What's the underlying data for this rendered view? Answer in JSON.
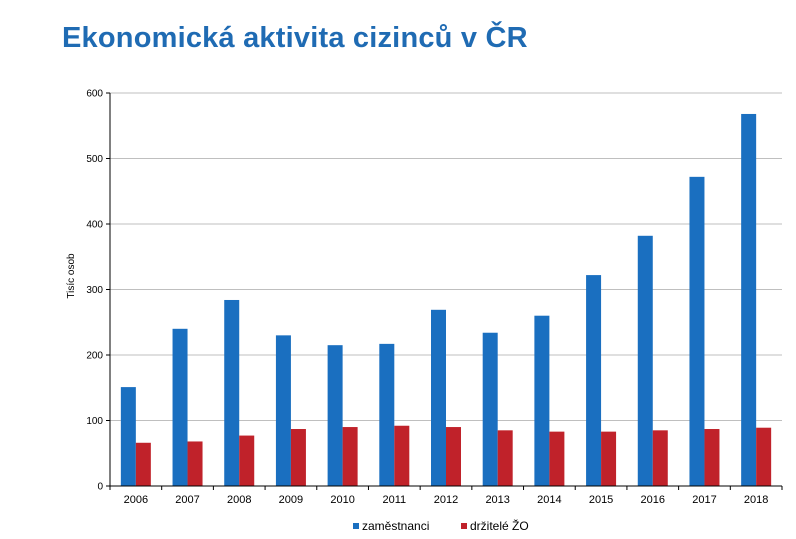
{
  "title": "Ekonomická aktivita cizinců v ČR",
  "colors": {
    "title": "#1f6bb3",
    "series_1": "#1a6fc0",
    "series_2": "#c0222a"
  },
  "chart_data": {
    "type": "bar",
    "categories": [
      "2006",
      "2007",
      "2008",
      "2009",
      "2010",
      "2011",
      "2012",
      "2013",
      "2014",
      "2015",
      "2016",
      "2017",
      "2018"
    ],
    "series": [
      {
        "name": "zaměstnanci",
        "color": "#1a6fc0",
        "values": [
          151,
          240,
          284,
          230,
          215,
          217,
          269,
          234,
          260,
          322,
          382,
          472,
          568
        ]
      },
      {
        "name": "držitelé ŽO",
        "color": "#c0222a",
        "values": [
          66,
          68,
          77,
          87,
          90,
          92,
          90,
          85,
          83,
          83,
          85,
          87,
          89
        ]
      }
    ],
    "ylabel": "Tisíc osob",
    "ylim": [
      0,
      600
    ],
    "yticks": [
      0,
      100,
      200,
      300,
      400,
      500,
      600
    ],
    "grid": true,
    "legend": "bottom"
  }
}
